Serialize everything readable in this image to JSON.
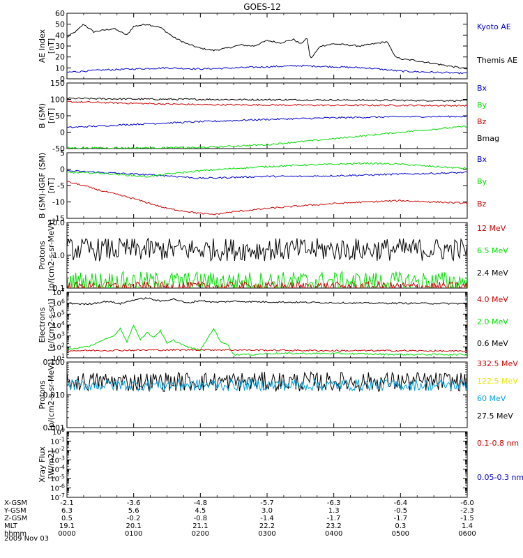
{
  "title": "GOES-12",
  "date_label": "2009 Nov 03",
  "colors": {
    "black": "#000000",
    "blue": "#0000cc",
    "green": "#00dd00",
    "red": "#cc0000",
    "cyan": "#00a0dd",
    "yellow": "#e8e800"
  },
  "chart_data": [
    {
      "type": "line",
      "panel": "ae",
      "ylabel": "AE Index [nT]",
      "ylim": [
        0,
        60
      ],
      "yticks": [
        0,
        10,
        20,
        30,
        40,
        50,
        60
      ],
      "yscale": "linear",
      "legend": [
        {
          "label": "Kyoto AE",
          "color": "blue"
        },
        {
          "label": "Themis AE",
          "color": "black"
        }
      ],
      "series": [
        {
          "name": "Themis AE",
          "color": "black",
          "x": [
            0,
            0.15,
            0.25,
            0.4,
            0.5,
            0.7,
            0.9,
            1.0,
            1.2,
            1.4,
            1.6,
            1.8,
            2.0,
            2.2,
            2.4,
            2.6,
            2.8,
            3.0,
            3.2,
            3.4,
            3.5,
            3.6,
            3.65,
            3.8,
            4.0,
            4.2,
            4.4,
            4.6,
            4.8,
            4.9,
            5.0,
            5.2,
            5.5,
            5.8,
            6.0
          ],
          "y": [
            38,
            44,
            50,
            43,
            44,
            46,
            40,
            48,
            50,
            47,
            38,
            32,
            28,
            26,
            28,
            31,
            30,
            35,
            33,
            36,
            32,
            37,
            18,
            30,
            32,
            31,
            30,
            32,
            34,
            22,
            18,
            17,
            14,
            11,
            9
          ]
        },
        {
          "name": "Kyoto AE",
          "color": "blue",
          "x": [
            0,
            0.5,
            1.0,
            1.5,
            2.0,
            2.5,
            3.0,
            3.5,
            4.0,
            4.5,
            5.0,
            5.5,
            6.0
          ],
          "y": [
            6,
            8,
            9,
            10,
            9,
            10,
            11,
            12,
            11,
            10,
            7,
            6,
            5
          ]
        }
      ]
    },
    {
      "type": "line",
      "panel": "b",
      "ylabel": "B (SM) [nT]",
      "ylim": [
        -50,
        150
      ],
      "yticks": [
        -50,
        0,
        50,
        100,
        150
      ],
      "yscale": "linear",
      "legend": [
        {
          "label": "Bx",
          "color": "blue"
        },
        {
          "label": "By",
          "color": "green"
        },
        {
          "label": "Bz",
          "color": "red"
        },
        {
          "label": "Bmag",
          "color": "black"
        }
      ],
      "series": [
        {
          "name": "Bmag",
          "color": "black",
          "x": [
            0,
            1,
            2,
            3,
            4,
            5,
            6
          ],
          "y": [
            103,
            101,
            100,
            99,
            98,
            97,
            96
          ]
        },
        {
          "name": "Bz",
          "color": "red",
          "x": [
            0,
            1,
            2,
            3,
            4,
            5,
            6
          ],
          "y": [
            93,
            88,
            84,
            83,
            82,
            82,
            81
          ]
        },
        {
          "name": "Bx",
          "color": "blue",
          "x": [
            0,
            1,
            2,
            3,
            4,
            5,
            6
          ],
          "y": [
            14,
            24,
            32,
            39,
            44,
            47,
            48
          ]
        },
        {
          "name": "By",
          "color": "green",
          "x": [
            0,
            1,
            2,
            3,
            4,
            5,
            6
          ],
          "y": [
            -48,
            -48,
            -47,
            -38,
            -20,
            0,
            18
          ]
        }
      ]
    },
    {
      "type": "line",
      "panel": "b-igrf",
      "ylabel": "B (SM)-IGRF (SM) [nT]",
      "ylim": [
        -15,
        5
      ],
      "yticks": [
        -15,
        -10,
        -5,
        0,
        5
      ],
      "yscale": "linear",
      "legend": [
        {
          "label": "Bx",
          "color": "blue"
        },
        {
          "label": "By",
          "color": "green"
        },
        {
          "label": "Bz",
          "color": "red"
        }
      ],
      "series": [
        {
          "name": "Bx",
          "color": "blue",
          "x": [
            0,
            0.5,
            1.0,
            1.5,
            2.0,
            2.5,
            3.0,
            3.5,
            4.0,
            4.5,
            5.0,
            5.5,
            6.0
          ],
          "y": [
            -0.5,
            -1.0,
            -1.5,
            -2.0,
            -2.8,
            -2.5,
            -2.2,
            -2.2,
            -2.0,
            -1.8,
            -1.5,
            -1.3,
            -1.0
          ]
        },
        {
          "name": "By",
          "color": "green",
          "x": [
            0,
            0.5,
            1.0,
            1.2,
            1.5,
            2.0,
            2.5,
            3.0,
            3.5,
            4.0,
            4.5,
            5.0,
            5.5,
            6.0
          ],
          "y": [
            -1.0,
            -1.2,
            -2.0,
            -2.3,
            -1.5,
            -0.5,
            0.2,
            0.8,
            1.2,
            1.5,
            1.8,
            1.5,
            0.8,
            0.2
          ]
        },
        {
          "name": "Bz",
          "color": "red",
          "x": [
            0,
            0.25,
            0.5,
            1.0,
            1.5,
            2.0,
            2.2,
            2.5,
            3.0,
            3.5,
            4.0,
            4.5,
            5.0,
            5.5,
            6.0
          ],
          "y": [
            -3.8,
            -5.0,
            -6.5,
            -9.0,
            -12.0,
            -13.5,
            -13.8,
            -13.0,
            -12.0,
            -11.2,
            -10.5,
            -10.0,
            -9.6,
            -10.0,
            -10.4
          ]
        }
      ]
    },
    {
      "type": "line",
      "panel": "protons-low",
      "ylabel": "Protons [p/(cm2-s-sr-MeV)]",
      "ylim": [
        0.1,
        10
      ],
      "yticks": [
        0.1,
        1.0,
        10.0
      ],
      "ytick_labels": [
        "0.1",
        "1.0",
        "10.0"
      ],
      "yscale": "log",
      "legend": [
        {
          "label": "12 MeV",
          "color": "red"
        },
        {
          "label": "6.5 MeV",
          "color": "green"
        },
        {
          "label": "2.4 MeV",
          "color": "black"
        }
      ],
      "series": [
        {
          "name": "2.4 MeV",
          "color": "black",
          "noisy_mean": 1.5,
          "noisy_spread": 0.35,
          "x_range": [
            0,
            6
          ]
        },
        {
          "name": "6.5 MeV",
          "color": "green",
          "noisy_mean": 0.16,
          "noisy_spread": 0.3,
          "x_range": [
            0,
            6
          ]
        },
        {
          "name": "12 MeV",
          "color": "red",
          "noisy_mean": 0.11,
          "noisy_spread": 0.15,
          "x_range": [
            0,
            6
          ]
        }
      ]
    },
    {
      "type": "line",
      "panel": "electrons",
      "ylabel": "Electrons [e/(cm2-s-sr)]",
      "ylim": [
        10,
        10000000
      ],
      "yticks": [
        10,
        100,
        1000,
        10000,
        100000,
        1000000,
        10000000
      ],
      "ytick_labels": [
        "10^1",
        "10^2",
        "10^3",
        "10^4",
        "10^5",
        "10^6",
        "10^7"
      ],
      "yscale": "log",
      "legend": [
        {
          "label": "4.0 MeV",
          "color": "red"
        },
        {
          "label": "2.0 MeV",
          "color": "green"
        },
        {
          "label": "0.6 MeV",
          "color": "black"
        }
      ],
      "series": [
        {
          "name": "0.6 MeV",
          "color": "black",
          "x": [
            0,
            0.3,
            0.6,
            0.8,
            1.0,
            1.2,
            1.4,
            1.6,
            1.8,
            2.0,
            2.2,
            2.5,
            3.0,
            3.5,
            4.0,
            4.5,
            5.0,
            5.5,
            6.0
          ],
          "y": [
            1000000,
            800000,
            1500000,
            900000,
            2000000,
            3000000,
            1500000,
            2500000,
            1000000,
            1800000,
            1200000,
            1500000,
            1300000,
            1200000,
            1100000,
            1000000,
            1000000,
            950000,
            900000
          ]
        },
        {
          "name": "2.0 MeV",
          "color": "green",
          "x": [
            0,
            0.3,
            0.5,
            0.7,
            0.8,
            0.9,
            1.0,
            1.1,
            1.2,
            1.3,
            1.4,
            1.5,
            1.6,
            1.8,
            2.0,
            2.2,
            2.3,
            2.4,
            2.5,
            2.6,
            2.8,
            3.0,
            4.0,
            5.0,
            6.0
          ],
          "y": [
            60,
            100,
            300,
            1000,
            5000,
            300,
            10000,
            500,
            2000,
            800,
            3000,
            200,
            400,
            100,
            50,
            5000,
            300,
            200,
            20,
            20,
            20,
            25,
            25,
            20,
            20
          ]
        },
        {
          "name": "4.0 MeV",
          "color": "red",
          "x": [
            0,
            1,
            2,
            3,
            4,
            5,
            6
          ],
          "y": [
            45,
            50,
            55,
            50,
            45,
            45,
            40
          ]
        }
      ]
    },
    {
      "type": "line",
      "panel": "protons-high",
      "ylabel": "Protons [p/(cm2-s-sr-MeV)]",
      "ylim": [
        0.001,
        0.1
      ],
      "yticks": [
        0.001,
        0.01,
        0.1
      ],
      "ytick_labels": [
        "0.001",
        "0.010",
        "0.100"
      ],
      "yscale": "log",
      "legend": [
        {
          "label": "332.5 MeV",
          "color": "red"
        },
        {
          "label": "122.5 MeV",
          "color": "yellow"
        },
        {
          "label": "60 MeV",
          "color": "cyan"
        },
        {
          "label": "27.5 MeV",
          "color": "black"
        }
      ],
      "series": [
        {
          "name": "27.5 MeV",
          "color": "black",
          "noisy_mean": 0.025,
          "noisy_spread": 0.3,
          "x_range": [
            0,
            6
          ]
        },
        {
          "name": "60 MeV",
          "color": "cyan",
          "noisy_mean": 0.02,
          "noisy_spread": 0.18,
          "x_range": [
            0,
            6
          ]
        }
      ]
    },
    {
      "type": "line",
      "panel": "xray",
      "ylabel": "Xray Flux [W/m2]",
      "ylim": [
        1e-07,
        1
      ],
      "yticks": [
        1e-07,
        1e-06,
        1e-05,
        0.0001,
        0.001,
        0.01,
        0.1,
        1
      ],
      "ytick_labels": [
        "10^-7",
        "10^-6",
        "10^-5",
        "10^-4",
        "10^-3",
        "10^-2",
        "10^-1",
        "10^0"
      ],
      "yscale": "log",
      "legend": [
        {
          "label": "0.1-0.8 nm",
          "color": "red"
        },
        {
          "label": "0.05-0.3 nm",
          "color": "blue"
        }
      ],
      "series": []
    }
  ],
  "x_axis": {
    "range_hours": [
      0,
      6
    ],
    "rows": [
      {
        "label": "X-GSM",
        "values": [
          "-2.1",
          "-3.6",
          "-4.8",
          "-5.7",
          "-6.3",
          "-6.4",
          "-6.0"
        ]
      },
      {
        "label": "Y-GSM",
        "values": [
          "6.3",
          "5.6",
          "4.5",
          "3.0",
          "1.3",
          "-0.5",
          "-2.3"
        ]
      },
      {
        "label": "Z-GSM",
        "values": [
          "0.5",
          "-0.2",
          "-0.8",
          "-1.4",
          "-1.7",
          "-1.7",
          "-1.5"
        ]
      },
      {
        "label": "MLT",
        "values": [
          "19.1",
          "20.1",
          "21.1",
          "22.2",
          "23.2",
          "0.3",
          "1.4"
        ]
      },
      {
        "label": "hhmm",
        "values": [
          "0000",
          "0100",
          "0200",
          "0300",
          "0400",
          "0500",
          "0600"
        ]
      }
    ]
  }
}
